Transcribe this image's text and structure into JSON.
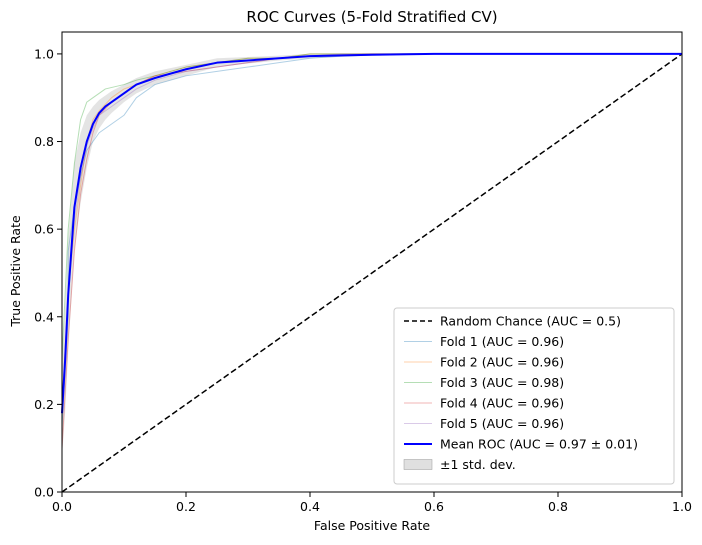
{
  "chart_data": {
    "type": "line",
    "title": "ROC Curves (5-Fold Stratified CV)",
    "xlabel": "False Positive Rate",
    "ylabel": "True Positive Rate",
    "xlim": [
      0.0,
      1.0
    ],
    "ylim": [
      0.0,
      1.05
    ],
    "xticks": [
      "0.0",
      "0.2",
      "0.4",
      "0.6",
      "0.8",
      "1.0"
    ],
    "yticks": [
      "0.0",
      "0.2",
      "0.4",
      "0.6",
      "0.8",
      "1.0"
    ],
    "grid": false,
    "legend_position": "lower-right",
    "series": [
      {
        "name": "Random Chance (AUC = 0.5)",
        "style": "dashed",
        "color": "#000000",
        "x": [
          0.0,
          1.0
        ],
        "y": [
          0.0,
          1.0
        ]
      },
      {
        "name": "Fold 1 (AUC = 0.96)",
        "color": "#1f77b4",
        "x": [
          0.0,
          0.0,
          0.01,
          0.01,
          0.02,
          0.03,
          0.04,
          0.05,
          0.06,
          0.08,
          0.1,
          0.12,
          0.15,
          0.2,
          0.25,
          0.3,
          0.35,
          0.4,
          0.45,
          0.55,
          0.8,
          1.0
        ],
        "y": [
          0.0,
          0.15,
          0.4,
          0.55,
          0.65,
          0.72,
          0.78,
          0.8,
          0.82,
          0.84,
          0.86,
          0.9,
          0.93,
          0.95,
          0.96,
          0.97,
          0.98,
          0.99,
          0.995,
          1.0,
          1.0,
          1.0
        ]
      },
      {
        "name": "Fold 2 (AUC = 0.96)",
        "color": "#ff7f0e",
        "x": [
          0.0,
          0.0,
          0.01,
          0.02,
          0.03,
          0.04,
          0.05,
          0.06,
          0.08,
          0.1,
          0.12,
          0.15,
          0.2,
          0.25,
          0.3,
          0.35,
          0.4,
          0.5,
          0.7,
          1.0
        ],
        "y": [
          0.0,
          0.2,
          0.45,
          0.6,
          0.7,
          0.8,
          0.85,
          0.87,
          0.9,
          0.92,
          0.93,
          0.95,
          0.97,
          0.98,
          0.99,
          0.99,
          1.0,
          1.0,
          1.0,
          1.0
        ]
      },
      {
        "name": "Fold 3 (AUC = 0.98)",
        "color": "#2ca02c",
        "x": [
          0.0,
          0.0,
          0.01,
          0.02,
          0.03,
          0.04,
          0.05,
          0.07,
          0.1,
          0.12,
          0.15,
          0.2,
          0.25,
          0.3,
          0.35,
          0.4,
          0.6,
          1.0
        ],
        "y": [
          0.0,
          0.3,
          0.6,
          0.75,
          0.85,
          0.89,
          0.9,
          0.92,
          0.93,
          0.94,
          0.95,
          0.97,
          0.98,
          0.99,
          0.99,
          1.0,
          1.0,
          1.0
        ]
      },
      {
        "name": "Fold 4 (AUC = 0.96)",
        "color": "#d62728",
        "x": [
          0.0,
          0.0,
          0.01,
          0.02,
          0.03,
          0.04,
          0.05,
          0.06,
          0.08,
          0.1,
          0.12,
          0.15,
          0.2,
          0.25,
          0.3,
          0.35,
          0.4,
          0.5,
          0.8,
          1.0
        ],
        "y": [
          0.0,
          0.1,
          0.35,
          0.55,
          0.68,
          0.76,
          0.82,
          0.86,
          0.89,
          0.91,
          0.93,
          0.95,
          0.96,
          0.97,
          0.98,
          0.99,
          0.995,
          1.0,
          1.0,
          1.0
        ]
      },
      {
        "name": "Fold 5 (AUC = 0.96)",
        "color": "#9467bd",
        "x": [
          0.0,
          0.0,
          0.01,
          0.02,
          0.03,
          0.04,
          0.05,
          0.06,
          0.08,
          0.1,
          0.12,
          0.15,
          0.2,
          0.25,
          0.3,
          0.35,
          0.4,
          0.45,
          0.6,
          1.0
        ],
        "y": [
          0.0,
          0.2,
          0.45,
          0.62,
          0.72,
          0.79,
          0.83,
          0.86,
          0.88,
          0.9,
          0.92,
          0.94,
          0.96,
          0.97,
          0.98,
          0.99,
          0.995,
          1.0,
          1.0,
          1.0
        ]
      },
      {
        "name": "Mean ROC (AUC = 0.97 ± 0.01)",
        "color": "#0000ff",
        "x": [
          0.0,
          0.005,
          0.01,
          0.02,
          0.03,
          0.04,
          0.05,
          0.06,
          0.07,
          0.08,
          0.1,
          0.12,
          0.15,
          0.2,
          0.25,
          0.3,
          0.35,
          0.4,
          0.5,
          0.6,
          0.8,
          1.0
        ],
        "y": [
          0.18,
          0.3,
          0.45,
          0.65,
          0.74,
          0.8,
          0.84,
          0.865,
          0.88,
          0.89,
          0.91,
          0.93,
          0.945,
          0.965,
          0.98,
          0.985,
          0.99,
          0.995,
          0.998,
          1.0,
          1.0,
          1.0
        ]
      }
    ],
    "band": {
      "name": "±1 std. dev.",
      "color": "#bbbbbb",
      "x": [
        0.0,
        0.005,
        0.01,
        0.02,
        0.03,
        0.04,
        0.05,
        0.06,
        0.07,
        0.08,
        0.1,
        0.12,
        0.15,
        0.2,
        0.25,
        0.3,
        0.35,
        0.4,
        0.5,
        0.6,
        0.8,
        1.0
      ],
      "lower": [
        0.08,
        0.18,
        0.32,
        0.55,
        0.66,
        0.74,
        0.8,
        0.83,
        0.85,
        0.865,
        0.89,
        0.91,
        0.93,
        0.95,
        0.97,
        0.978,
        0.985,
        0.99,
        0.996,
        1.0,
        1.0,
        1.0
      ],
      "upper": [
        0.28,
        0.42,
        0.58,
        0.75,
        0.82,
        0.86,
        0.88,
        0.895,
        0.905,
        0.915,
        0.93,
        0.945,
        0.96,
        0.975,
        0.99,
        0.993,
        0.996,
        1.0,
        1.0,
        1.0,
        1.0,
        1.0
      ]
    }
  }
}
